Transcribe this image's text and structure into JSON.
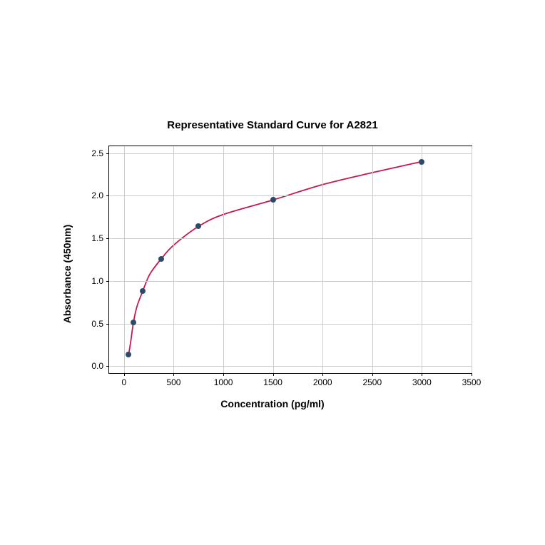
{
  "chart": {
    "type": "scatter-line",
    "title": "Representative Standard Curve for A2821",
    "title_fontsize": 15,
    "title_fontweight": "bold",
    "xlabel": "Concentration (pg/ml)",
    "ylabel": "Absorbance (450nm)",
    "label_fontsize": 14,
    "label_fontweight": "bold",
    "tick_fontsize": 12,
    "background_color": "#ffffff",
    "grid_color": "#cccccc",
    "axis_color": "#000000",
    "xlim": [
      -150,
      3500
    ],
    "ylim": [
      -0.08,
      2.58
    ],
    "xticks": [
      0,
      500,
      1000,
      1500,
      2000,
      2500,
      3000,
      3500
    ],
    "yticks": [
      0.0,
      0.5,
      1.0,
      1.5,
      2.0,
      2.5
    ],
    "ytick_labels": [
      "0.0",
      "0.5",
      "1.0",
      "1.5",
      "2.0",
      "2.5"
    ],
    "data_points": {
      "x": [
        47,
        94,
        188,
        375,
        750,
        1500,
        3000
      ],
      "y": [
        0.14,
        0.51,
        0.88,
        1.26,
        1.64,
        1.95,
        2.4
      ]
    },
    "marker_color": "#2e4a6b",
    "marker_size": 8,
    "line_color": "#c8194b",
    "line_width": 1.8,
    "curve_points": {
      "x": [
        47,
        70,
        94,
        130,
        188,
        260,
        375,
        500,
        750,
        1000,
        1500,
        2000,
        2500,
        3000
      ],
      "y": [
        0.14,
        0.31,
        0.51,
        0.7,
        0.88,
        1.08,
        1.26,
        1.42,
        1.64,
        1.78,
        1.95,
        2.13,
        2.27,
        2.4
      ]
    }
  }
}
